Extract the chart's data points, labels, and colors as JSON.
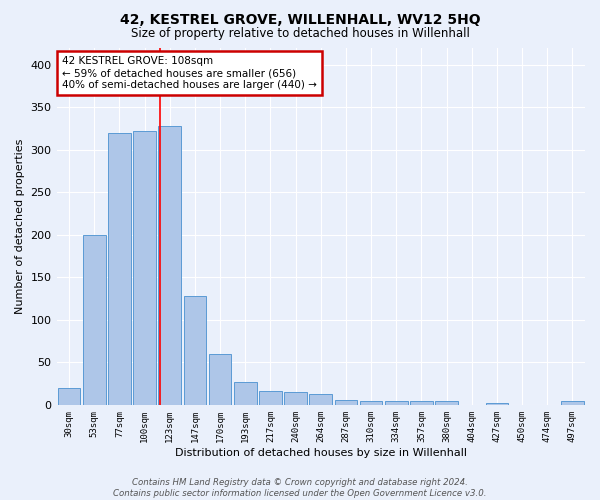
{
  "title": "42, KESTREL GROVE, WILLENHALL, WV12 5HQ",
  "subtitle": "Size of property relative to detached houses in Willenhall",
  "xlabel": "Distribution of detached houses by size in Willenhall",
  "ylabel": "Number of detached properties",
  "categories": [
    "30sqm",
    "53sqm",
    "77sqm",
    "100sqm",
    "123sqm",
    "147sqm",
    "170sqm",
    "193sqm",
    "217sqm",
    "240sqm",
    "264sqm",
    "287sqm",
    "310sqm",
    "334sqm",
    "357sqm",
    "380sqm",
    "404sqm",
    "427sqm",
    "450sqm",
    "474sqm",
    "497sqm"
  ],
  "values": [
    20,
    200,
    320,
    322,
    328,
    128,
    60,
    27,
    16,
    15,
    13,
    6,
    4,
    4,
    4,
    4,
    0,
    2,
    0,
    0,
    5
  ],
  "bar_color": "#aec6e8",
  "bar_edge_color": "#5b9bd5",
  "red_line_index": 3.62,
  "annotation_text": "42 KESTREL GROVE: 108sqm\n← 59% of detached houses are smaller (656)\n40% of semi-detached houses are larger (440) →",
  "annotation_box_color": "#ffffff",
  "annotation_box_edge_color": "#cc0000",
  "ylim": [
    0,
    420
  ],
  "yticks": [
    0,
    50,
    100,
    150,
    200,
    250,
    300,
    350,
    400
  ],
  "background_color": "#eaf0fb",
  "fig_background_color": "#eaf0fb",
  "grid_color": "#ffffff",
  "footer_line1": "Contains HM Land Registry data © Crown copyright and database right 2024.",
  "footer_line2": "Contains public sector information licensed under the Open Government Licence v3.0."
}
